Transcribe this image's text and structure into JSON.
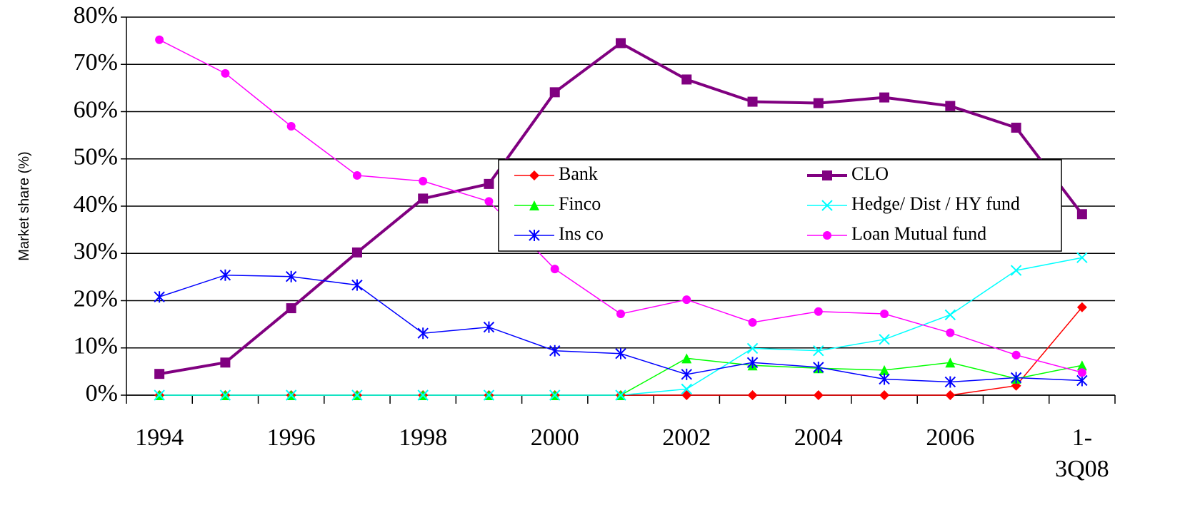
{
  "chart_data": {
    "type": "line",
    "y_label": "Market share (%)",
    "categories": [
      "1994",
      null,
      "1996",
      null,
      "1998",
      null,
      "2000",
      null,
      "2002",
      null,
      "2004",
      null,
      "2006",
      null,
      "1-3Q08"
    ],
    "ylim": [
      0,
      80
    ],
    "yticks": [
      {
        "value": 0,
        "label": "0%"
      },
      {
        "value": 10,
        "label": "10%"
      },
      {
        "value": 20,
        "label": "20%"
      },
      {
        "value": 30,
        "label": "30%"
      },
      {
        "value": 40,
        "label": "40%"
      },
      {
        "value": 50,
        "label": "50%"
      },
      {
        "value": 60,
        "label": "60%"
      },
      {
        "value": 70,
        "label": "70%"
      },
      {
        "value": 80,
        "label": "80%"
      }
    ],
    "grid": true,
    "series": [
      {
        "name": "Bank",
        "color": "#ff0000",
        "marker": "diamond",
        "line_width": 1.5,
        "values": [
          0,
          0,
          0,
          0,
          0,
          0,
          0,
          0,
          0,
          0,
          0,
          0,
          0,
          2,
          18.6
        ]
      },
      {
        "name": "CLO",
        "color": "#800080",
        "marker": "square",
        "line_width": 4,
        "values": [
          4.5,
          6.9,
          18.4,
          30.2,
          41.6,
          44.7,
          64.1,
          74.5,
          66.8,
          62.1,
          61.8,
          63.0,
          61.2,
          56.6,
          38.3
        ]
      },
      {
        "name": "Finco",
        "color": "#00ff00",
        "marker": "triangle",
        "line_width": 1.5,
        "values": [
          0,
          0,
          0,
          0,
          0,
          0,
          0,
          0,
          7.8,
          6.3,
          5.7,
          5.3,
          6.9,
          3.5,
          6.3
        ]
      },
      {
        "name": "Hedge/ Dist / HY fund",
        "color": "#00ffff",
        "marker": "x",
        "line_width": 1.5,
        "values": [
          0,
          0,
          0,
          0,
          0,
          0,
          0,
          0,
          1.3,
          9.9,
          9.4,
          11.8,
          17.0,
          26.4,
          29.1
        ]
      },
      {
        "name": "Ins co",
        "color": "#0000ff",
        "marker": "star",
        "line_width": 1.5,
        "values": [
          20.8,
          25.4,
          25.1,
          23.3,
          13.1,
          14.4,
          9.4,
          8.8,
          4.4,
          6.9,
          5.9,
          3.4,
          2.8,
          3.7,
          3.1
        ]
      },
      {
        "name": "Loan Mutual fund",
        "color": "#ff00ff",
        "marker": "circle",
        "line_width": 1.5,
        "values": [
          75.2,
          68.1,
          56.9,
          46.5,
          45.3,
          41.0,
          26.7,
          17.2,
          20.2,
          15.4,
          17.7,
          17.2,
          13.2,
          8.5,
          4.8
        ]
      }
    ]
  }
}
